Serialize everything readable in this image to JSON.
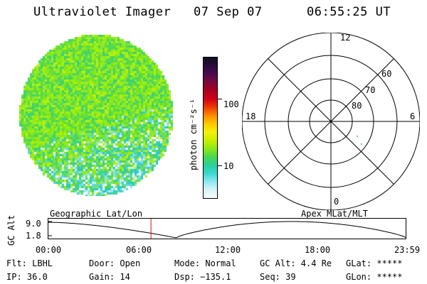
{
  "header": {
    "instrument": "Ultraviolet Imager",
    "date": "07 Sep 07",
    "time": "06:55:25 UT"
  },
  "colorbar": {
    "unit_label": "photon cm⁻²s⁻¹",
    "ticks": [
      "100",
      "10"
    ],
    "colors": [
      "#101020",
      "#2a0a3a",
      "#4b0a4f",
      "#7a0a3a",
      "#a8001e",
      "#d0001a",
      "#ef3a00",
      "#ff8a00",
      "#ffc800",
      "#f4f00a",
      "#c8f000",
      "#8ee81a",
      "#4ad84a",
      "#29d09a",
      "#3ad8d0",
      "#8ee8f0",
      "#d8f4f8",
      "#f6fbfb"
    ]
  },
  "polar_grid": {
    "mlt_labels": {
      "top": "12",
      "left": "18",
      "right": "6",
      "bottom": "0"
    },
    "lat_labels": [
      "60",
      "70",
      "80"
    ]
  },
  "alt_plot": {
    "left_label": "Geographic Lat/Lon",
    "right_label": "Apex MLat/MLT",
    "axis_label": "GC Alt",
    "y_ticks": [
      "9.0",
      "1.8"
    ],
    "x_ticks": [
      "00:00",
      "06:00",
      "12:00",
      "18:00",
      "23:59"
    ],
    "current_time_fraction": 0.288
  },
  "info": {
    "row1": {
      "flt": "Flt: LBHL",
      "door": "Door: Open",
      "mode": "Mode: Normal",
      "gcalt": "GC Alt: 4.4 Re",
      "glat": "GLat: *****"
    },
    "row2": {
      "ip": "IP: 36.0",
      "gain": "Gain: 14",
      "dsp": "Dsp: −135.1",
      "seq": "Seq: 39",
      "glon": "GLon: *****"
    }
  }
}
